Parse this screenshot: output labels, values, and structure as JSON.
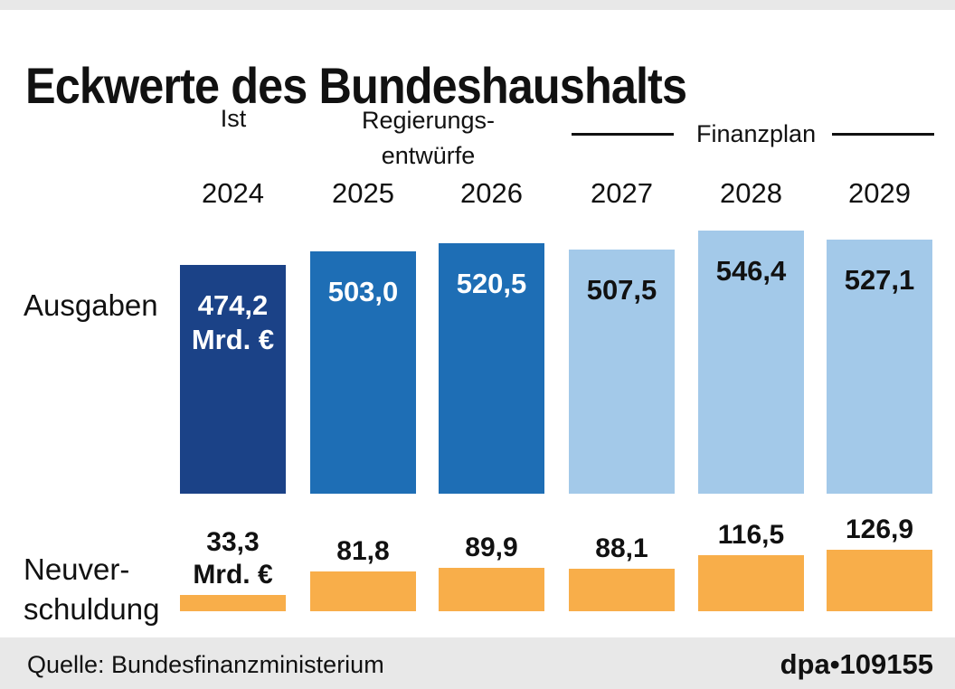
{
  "title": "Eckwerte des Bundeshaushalts",
  "column_headers": {
    "ist": "Ist",
    "regierungsentwuerfe_line1": "Regierungs-",
    "regierungsentwuerfe_line2": "entwürfe",
    "finanzplan": "Finanzplan"
  },
  "row_labels": {
    "ausgaben": "Ausgaben",
    "neuverschuldung_line1": "Neuver-",
    "neuverschuldung_line2": "schuldung"
  },
  "footer": {
    "source": "Quelle: Bundesfinanzministerium",
    "credit": "dpa•109155"
  },
  "colors": {
    "dark_blue": "#1b4287",
    "mid_blue": "#1e6eb5",
    "light_blue": "#a3c9e9",
    "orange": "#f8ae4a",
    "strip_gray": "#e8e8e8",
    "text_black": "#111111",
    "text_white": "#ffffff"
  },
  "chart_data": {
    "type": "bar",
    "title": "Eckwerte des Bundeshaushalts",
    "unit": "Mrd. €",
    "categories": [
      "2024",
      "2025",
      "2026",
      "2027",
      "2028",
      "2029"
    ],
    "category_groups": [
      "Ist",
      "Regierungsentwürfe",
      "Regierungsentwürfe",
      "Finanzplan",
      "Finanzplan",
      "Finanzplan"
    ],
    "legend_position": "none",
    "grid": false,
    "series": [
      {
        "name": "Ausgaben",
        "values": [
          474.2,
          503.0,
          520.5,
          507.5,
          546.4,
          527.1
        ],
        "labels": [
          "474,2",
          "503,0",
          "520,5",
          "507,5",
          "546,4",
          "527,1"
        ]
      },
      {
        "name": "Neuverschuldung",
        "values": [
          33.3,
          81.8,
          89.9,
          88.1,
          116.5,
          126.9
        ],
        "labels": [
          "33,3",
          "81,8",
          "89,9",
          "88,1",
          "116,5",
          "126,9"
        ]
      }
    ]
  }
}
